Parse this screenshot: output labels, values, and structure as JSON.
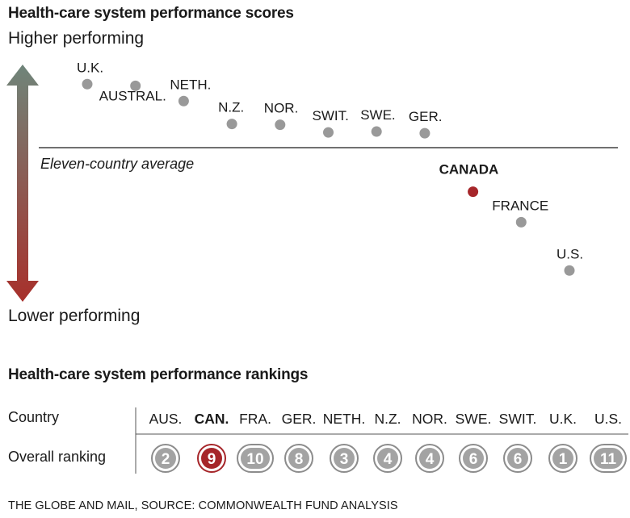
{
  "chart_data": [
    {
      "type": "scatter",
      "title": "Health-care system performance scores",
      "y_top_label": "Higher performing",
      "y_bottom_label": "Lower performing",
      "reference_line_label": "Eleven-country average",
      "points": [
        {
          "label": "U.K.",
          "score": 0.75,
          "highlight": false
        },
        {
          "label": "AUSTRAL.",
          "score": 0.73,
          "highlight": false
        },
        {
          "label": "NETH.",
          "score": 0.55,
          "highlight": false
        },
        {
          "label": "N.Z.",
          "score": 0.28,
          "highlight": false
        },
        {
          "label": "NOR.",
          "score": 0.27,
          "highlight": false
        },
        {
          "label": "SWIT.",
          "score": 0.18,
          "highlight": false
        },
        {
          "label": "SWE.",
          "score": 0.19,
          "highlight": false
        },
        {
          "label": "GER.",
          "score": 0.17,
          "highlight": false
        },
        {
          "label": "CANADA",
          "score": -0.52,
          "highlight": true
        },
        {
          "label": "FRANCE",
          "score": -0.88,
          "highlight": false
        },
        {
          "label": "U.S.",
          "score": -1.45,
          "highlight": false
        }
      ],
      "average_score": 0
    },
    {
      "type": "table",
      "title": "Health-care system performance rankings",
      "row_header": "Country",
      "value_row_label": "Overall ranking",
      "columns": [
        "AUS.",
        "CAN.",
        "FRA.",
        "GER.",
        "NETH.",
        "N.Z.",
        "NOR.",
        "SWE.",
        "SWIT.",
        "U.K.",
        "U.S."
      ],
      "rankings": [
        "2",
        "9",
        "10",
        "8",
        "3",
        "4",
        "4",
        "6",
        "6",
        "1",
        "11"
      ],
      "highlight_column": "CAN."
    }
  ],
  "footer": "THE GLOBE AND MAIL,  SOURCE: COMMONWEALTH FUND ANALYSIS",
  "colors": {
    "point": "#999999",
    "highlight": "#a6262a",
    "arrow_top": "#6f857a",
    "arrow_bottom": "#a8302b",
    "badge_ring": "#8c8c8c",
    "badge_fill": "#a3a3a3"
  }
}
